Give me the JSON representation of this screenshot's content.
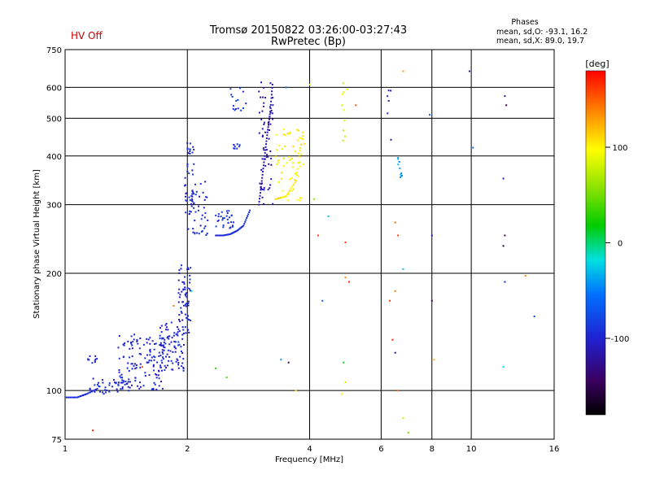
{
  "header": {
    "hv_status": "HV Off",
    "title_line1": "Tromsø 20150822 03:26:00-03:27:43",
    "title_line2": "RwPretec (Bp)",
    "stats_title": "Phases",
    "stats_o": "mean, sd,O: -93.1, 16.2",
    "stats_x": "mean, sd,X: 89.0, 19.7"
  },
  "colorbar": {
    "unit_label": "[deg]",
    "range": [
      -180,
      180
    ],
    "tick_values": [
      100,
      0,
      -100
    ],
    "tick_labels": [
      "100",
      "0",
      "-100"
    ]
  },
  "chart_data": {
    "type": "scatter",
    "title": "Tromsø 20150822 03:26:00-03:27:43",
    "subtitle": "RwPretec (Bp)",
    "xlabel": "Frequency [MHz]",
    "ylabel": "Stationary phase Virtual Height [km]",
    "xscale": "log",
    "yscale": "log",
    "xlim": [
      1,
      16
    ],
    "ylim": [
      75,
      750
    ],
    "x_ticks": [
      1,
      2,
      4,
      6,
      8,
      10,
      16
    ],
    "x_tick_labels": [
      "1",
      "2",
      "4",
      "6",
      "8",
      "10",
      "16"
    ],
    "y_ticks": [
      75,
      100,
      200,
      300,
      400,
      500,
      600,
      750
    ],
    "y_tick_labels": [
      "75",
      "100",
      "200",
      "300",
      "400",
      "500",
      "600",
      "750"
    ],
    "grid": true,
    "color_encoding": "phase [deg]",
    "segments": [
      {
        "type": "curve",
        "phase": -95,
        "x": [
          1.0,
          1.07,
          1.13,
          1.2
        ],
        "y": [
          96,
          96,
          98,
          101
        ]
      },
      {
        "type": "band",
        "phase": -100,
        "x0": 1.12,
        "x1": 1.2,
        "y0": 117,
        "y1": 125,
        "n": 10
      },
      {
        "type": "band",
        "phase": -97,
        "x0": 1.15,
        "x1": 1.45,
        "y0": 98,
        "y1": 108,
        "n": 40
      },
      {
        "type": "band",
        "phase": -98,
        "x0": 1.35,
        "x1": 1.75,
        "y0": 100,
        "y1": 140,
        "n": 130
      },
      {
        "type": "band",
        "phase": -100,
        "x0": 1.7,
        "x1": 1.98,
        "y0": 112,
        "y1": 150,
        "n": 90
      },
      {
        "type": "band",
        "phase": -102,
        "x0": 1.9,
        "x1": 2.04,
        "y0": 140,
        "y1": 210,
        "n": 60
      },
      {
        "type": "band",
        "phase": -96,
        "x0": 1.97,
        "x1": 2.08,
        "y0": 250,
        "y1": 440,
        "n": 45
      },
      {
        "type": "band",
        "phase": -95,
        "x0": 2.05,
        "x1": 2.25,
        "y0": 250,
        "y1": 350,
        "n": 40
      },
      {
        "type": "curve",
        "phase": -93,
        "x": [
          2.35,
          2.45,
          2.55,
          2.65,
          2.75,
          2.85
        ],
        "y": [
          250,
          250,
          252,
          257,
          265,
          290
        ]
      },
      {
        "type": "band",
        "phase": -90,
        "x0": 2.35,
        "x1": 2.6,
        "y0": 260,
        "y1": 290,
        "n": 30
      },
      {
        "type": "curve",
        "phase": -115,
        "x": [
          3.0,
          3.05,
          3.1,
          3.15,
          3.2,
          3.24
        ],
        "y": [
          300,
          345,
          400,
          460,
          520,
          610
        ]
      },
      {
        "type": "band",
        "phase": -115,
        "x0": 3.0,
        "x1": 3.25,
        "y0": 300,
        "y1": 620,
        "n": 60
      },
      {
        "type": "band",
        "phase": -88,
        "x0": 2.55,
        "x1": 2.8,
        "y0": 520,
        "y1": 600,
        "n": 15
      },
      {
        "type": "band",
        "phase": -95,
        "x0": 2.6,
        "x1": 2.7,
        "y0": 410,
        "y1": 430,
        "n": 8
      },
      {
        "type": "curve",
        "phase": 105,
        "x": [
          3.3,
          3.5,
          3.7,
          3.85
        ],
        "y": [
          310,
          315,
          345,
          460
        ]
      },
      {
        "type": "band",
        "phase": 100,
        "x0": 3.3,
        "x1": 3.9,
        "y0": 305,
        "y1": 480,
        "n": 60
      },
      {
        "type": "band",
        "phase": 80,
        "x0": 4.8,
        "x1": 4.95,
        "y0": 420,
        "y1": 620,
        "n": 10
      },
      {
        "type": "band",
        "phase": -40,
        "x0": 6.6,
        "x1": 6.75,
        "y0": 350,
        "y1": 420,
        "n": 10
      },
      {
        "type": "band",
        "phase": -110,
        "x0": 6.2,
        "x1": 6.35,
        "y0": 440,
        "y1": 610,
        "n": 6
      }
    ],
    "scatter_points": [
      {
        "x": 1.17,
        "y": 79,
        "phase": 170
      },
      {
        "x": 1.55,
        "y": 115,
        "phase": 150
      },
      {
        "x": 1.85,
        "y": 165,
        "phase": 140
      },
      {
        "x": 2.05,
        "y": 180,
        "phase": -20
      },
      {
        "x": 2.35,
        "y": 114,
        "phase": 30
      },
      {
        "x": 2.5,
        "y": 108,
        "phase": 40
      },
      {
        "x": 3.4,
        "y": 120,
        "phase": -40
      },
      {
        "x": 3.55,
        "y": 118,
        "phase": -140
      },
      {
        "x": 3.7,
        "y": 100,
        "phase": 110
      },
      {
        "x": 4.2,
        "y": 250,
        "phase": 160
      },
      {
        "x": 4.3,
        "y": 170,
        "phase": -60
      },
      {
        "x": 4.45,
        "y": 280,
        "phase": -30
      },
      {
        "x": 4.1,
        "y": 310,
        "phase": 60
      },
      {
        "x": 5.2,
        "y": 540,
        "phase": 150
      },
      {
        "x": 4.9,
        "y": 240,
        "phase": 160
      },
      {
        "x": 4.9,
        "y": 195,
        "phase": 140
      },
      {
        "x": 5.0,
        "y": 190,
        "phase": 170
      },
      {
        "x": 4.85,
        "y": 118,
        "phase": 20
      },
      {
        "x": 4.9,
        "y": 105,
        "phase": 80
      },
      {
        "x": 4.8,
        "y": 98,
        "phase": 100
      },
      {
        "x": 6.5,
        "y": 270,
        "phase": 150
      },
      {
        "x": 6.6,
        "y": 250,
        "phase": 160
      },
      {
        "x": 6.8,
        "y": 205,
        "phase": -30
      },
      {
        "x": 6.5,
        "y": 180,
        "phase": 140
      },
      {
        "x": 6.3,
        "y": 170,
        "phase": 160
      },
      {
        "x": 6.4,
        "y": 135,
        "phase": 170
      },
      {
        "x": 6.5,
        "y": 125,
        "phase": -120
      },
      {
        "x": 6.6,
        "y": 100,
        "phase": 150
      },
      {
        "x": 6.8,
        "y": 85,
        "phase": 80
      },
      {
        "x": 7.0,
        "y": 78,
        "phase": 50
      },
      {
        "x": 7.9,
        "y": 510,
        "phase": -60
      },
      {
        "x": 8.0,
        "y": 250,
        "phase": -110
      },
      {
        "x": 8.0,
        "y": 170,
        "phase": -140
      },
      {
        "x": 8.1,
        "y": 120,
        "phase": 120
      },
      {
        "x": 6.8,
        "y": 660,
        "phase": 130
      },
      {
        "x": 9.9,
        "y": 660,
        "phase": -130
      },
      {
        "x": 10.1,
        "y": 420,
        "phase": -60
      },
      {
        "x": 12.1,
        "y": 570,
        "phase": -120
      },
      {
        "x": 12.2,
        "y": 540,
        "phase": -150
      },
      {
        "x": 12.0,
        "y": 350,
        "phase": -110
      },
      {
        "x": 12.1,
        "y": 250,
        "phase": -140
      },
      {
        "x": 12.0,
        "y": 235,
        "phase": -160
      },
      {
        "x": 12.1,
        "y": 190,
        "phase": -90
      },
      {
        "x": 12.0,
        "y": 115,
        "phase": -20
      },
      {
        "x": 13.6,
        "y": 197,
        "phase": 140
      },
      {
        "x": 14.3,
        "y": 155,
        "phase": -80
      },
      {
        "x": 4.0,
        "y": 610,
        "phase": 80
      },
      {
        "x": 3.5,
        "y": 600,
        "phase": -60
      }
    ]
  }
}
